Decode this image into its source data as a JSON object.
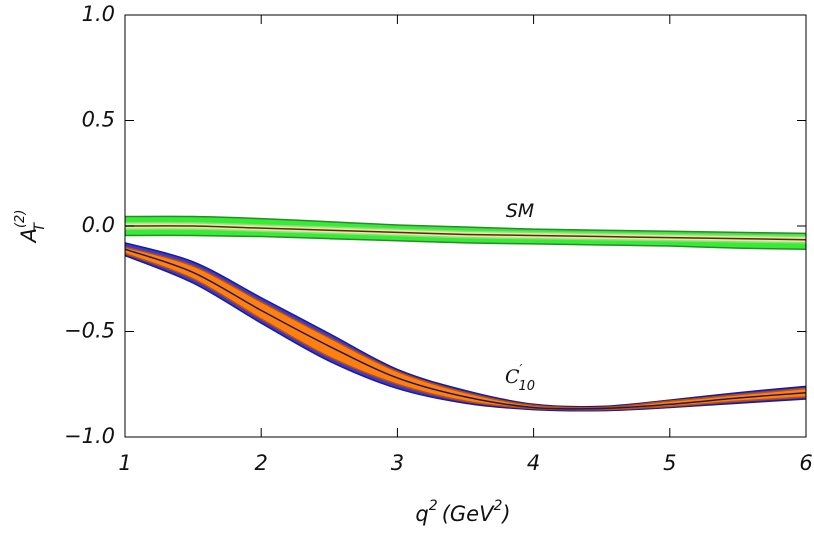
{
  "chart_data": {
    "type": "band",
    "x_label": {
      "base": "q",
      "sup": "2",
      "rest": "(GeV",
      "rest_sup": "2",
      "close": ")"
    },
    "y_label": {
      "base": "A",
      "sub": "T",
      "sup": "(2)"
    },
    "x": [
      1,
      1.5,
      2,
      2.5,
      3,
      3.5,
      4,
      4.5,
      5,
      5.5,
      6
    ],
    "xlim": [
      1,
      6
    ],
    "ylim": [
      -1,
      1
    ],
    "xticks": [
      1,
      2,
      3,
      4,
      5,
      6
    ],
    "yticks": [
      {
        "value": -1,
        "label": "−1.0"
      },
      {
        "value": -0.5,
        "label": "−0.5"
      },
      {
        "value": 0,
        "label": "0.0"
      },
      0.5,
      {
        "value": 1,
        "label": "1.0"
      }
    ],
    "series": [
      {
        "name": "SM",
        "color": "#7a1a00",
        "label_at": [
          3.9,
          0.07
        ],
        "values": [
          0.0,
          0.0,
          -0.01,
          -0.02,
          -0.03,
          -0.04,
          -0.045,
          -0.05,
          -0.055,
          -0.06,
          -0.065
        ],
        "bands": [
          {
            "color": "#33ee33",
            "edge": "#2a8a2a",
            "upper": [
              0.045,
              0.045,
              0.035,
              0.02,
              0.005,
              -0.005,
              -0.015,
              -0.02,
              -0.025,
              -0.03,
              -0.035
            ],
            "lower": [
              -0.045,
              -0.045,
              -0.05,
              -0.06,
              -0.07,
              -0.08,
              -0.085,
              -0.09,
              -0.095,
              -0.105,
              -0.11
            ]
          },
          {
            "color": "#c8f5a8",
            "edge": "#9ad880",
            "upper": [
              0.015,
              0.015,
              0.005,
              -0.005,
              -0.015,
              -0.025,
              -0.03,
              -0.035,
              -0.04,
              -0.045,
              -0.05
            ],
            "lower": [
              -0.015,
              -0.015,
              -0.025,
              -0.035,
              -0.045,
              -0.055,
              -0.06,
              -0.065,
              -0.07,
              -0.075,
              -0.08
            ]
          }
        ]
      },
      {
        "name": "C",
        "name_sup": "′",
        "name_sub": "10",
        "color": "#1a1a66",
        "label_at": [
          3.9,
          -0.72
        ],
        "values": [
          -0.11,
          -0.22,
          -0.4,
          -0.57,
          -0.72,
          -0.81,
          -0.86,
          -0.865,
          -0.845,
          -0.815,
          -0.79
        ],
        "bands": [
          {
            "color": "#3a3ad0",
            "edge": "#1a1a99",
            "upper": [
              -0.08,
              -0.17,
              -0.34,
              -0.51,
              -0.68,
              -0.78,
              -0.845,
              -0.855,
              -0.825,
              -0.79,
              -0.76
            ],
            "lower": [
              -0.14,
              -0.27,
              -0.46,
              -0.64,
              -0.77,
              -0.84,
              -0.87,
              -0.875,
              -0.86,
              -0.84,
              -0.82
            ]
          },
          {
            "color": "#ff8010",
            "edge": "#c05000",
            "upper": [
              -0.1,
              -0.19,
              -0.36,
              -0.53,
              -0.69,
              -0.79,
              -0.85,
              -0.86,
              -0.83,
              -0.8,
              -0.77
            ],
            "lower": [
              -0.13,
              -0.25,
              -0.44,
              -0.62,
              -0.75,
              -0.83,
              -0.865,
              -0.87,
              -0.855,
              -0.83,
              -0.81
            ]
          }
        ]
      }
    ]
  }
}
